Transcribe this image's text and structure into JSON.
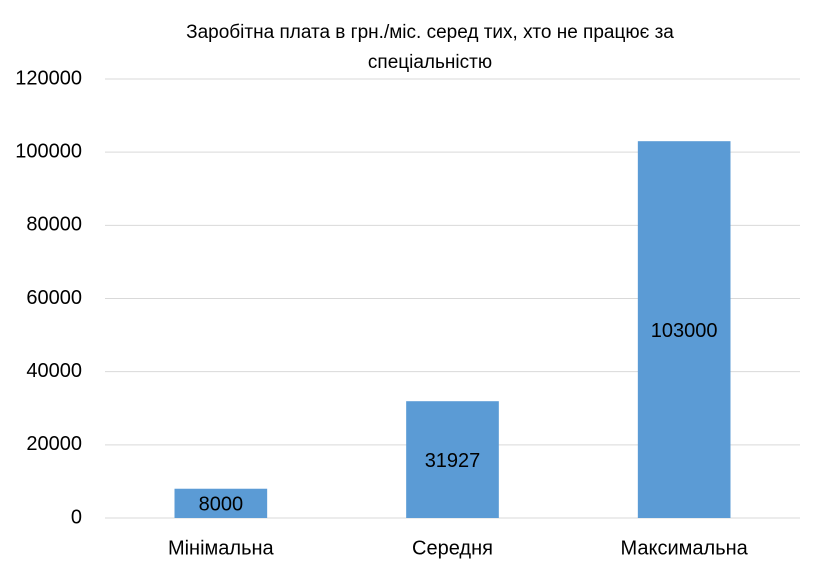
{
  "chart_data": {
    "type": "bar",
    "title": "Заробітна плата в грн./міс. серед тих, хто не працює за спеціальністю",
    "categories": [
      "Мінімальна",
      "Середня",
      "Максимальна"
    ],
    "values": [
      8000,
      31927,
      103000
    ],
    "color": "#5b9bd5",
    "ylim": [
      0,
      120000
    ],
    "yticks": [
      0,
      20000,
      40000,
      60000,
      80000,
      100000,
      120000
    ],
    "grid": true,
    "data_labels": true
  }
}
